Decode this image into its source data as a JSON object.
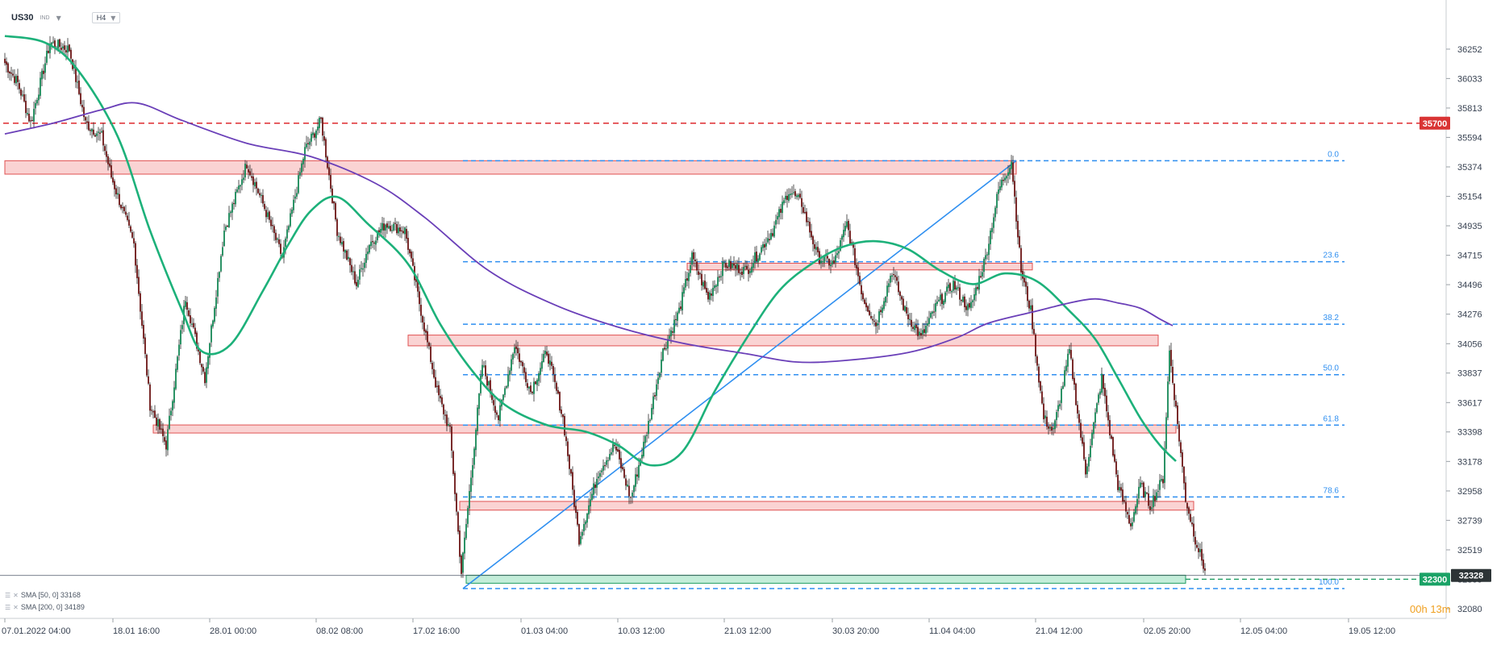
{
  "header": {
    "symbol": "US30",
    "market": "IND",
    "timeframe": "H4"
  },
  "indicators": [
    {
      "label": "SMA [50, 0] 33168",
      "color": "#1db17a"
    },
    {
      "label": "SMA [200, 0] 34189",
      "color": "#6a3fb8"
    }
  ],
  "countdown": {
    "hours": "00h",
    "minutes": "13m"
  },
  "chart_data": {
    "type": "candlestick",
    "y_ticks": [
      36252,
      36033,
      35813,
      35594,
      35374,
      35154,
      34935,
      34715,
      34496,
      34276,
      34056,
      33837,
      33617,
      33398,
      33178,
      32958,
      32739,
      32519,
      32300,
      32080
    ],
    "ylim": [
      32080,
      36450
    ],
    "x_ticks": [
      "07.01.2022  04:00",
      "18.01  16:00",
      "28.01  00:00",
      "08.02  08:00",
      "17.02  16:00",
      "01.03  04:00",
      "10.03  12:00",
      "21.03  12:00",
      "30.03  20:00",
      "11.04  04:00",
      "21.04  12:00",
      "02.05  20:00",
      "12.05  04:00",
      "19.05  12:00"
    ],
    "x_tick_index": [
      0,
      67,
      127,
      193,
      253,
      320,
      380,
      446,
      513,
      573,
      639,
      706,
      766,
      833
    ],
    "n_candles": 745,
    "anchors": [
      [
        0,
        36150
      ],
      [
        8,
        36000
      ],
      [
        16,
        35700
      ],
      [
        28,
        36300
      ],
      [
        40,
        36250
      ],
      [
        50,
        35700
      ],
      [
        60,
        35600
      ],
      [
        66,
        35300
      ],
      [
        80,
        34800
      ],
      [
        90,
        33600
      ],
      [
        100,
        33300
      ],
      [
        112,
        34400
      ],
      [
        124,
        33800
      ],
      [
        136,
        34900
      ],
      [
        150,
        35400
      ],
      [
        160,
        35100
      ],
      [
        172,
        34700
      ],
      [
        186,
        35500
      ],
      [
        196,
        35720
      ],
      [
        206,
        34900
      ],
      [
        218,
        34500
      ],
      [
        226,
        34800
      ],
      [
        236,
        34950
      ],
      [
        248,
        34900
      ],
      [
        258,
        34300
      ],
      [
        268,
        33700
      ],
      [
        276,
        33400
      ],
      [
        283,
        32350
      ],
      [
        296,
        33900
      ],
      [
        306,
        33500
      ],
      [
        316,
        34050
      ],
      [
        326,
        33700
      ],
      [
        336,
        34000
      ],
      [
        346,
        33500
      ],
      [
        356,
        32600
      ],
      [
        368,
        33100
      ],
      [
        378,
        33300
      ],
      [
        388,
        32900
      ],
      [
        398,
        33400
      ],
      [
        408,
        34000
      ],
      [
        418,
        34300
      ],
      [
        426,
        34700
      ],
      [
        436,
        34400
      ],
      [
        446,
        34650
      ],
      [
        460,
        34600
      ],
      [
        476,
        34900
      ],
      [
        486,
        35200
      ],
      [
        494,
        35100
      ],
      [
        504,
        34700
      ],
      [
        514,
        34650
      ],
      [
        522,
        34950
      ],
      [
        532,
        34400
      ],
      [
        540,
        34200
      ],
      [
        550,
        34600
      ],
      [
        558,
        34300
      ],
      [
        568,
        34100
      ],
      [
        578,
        34350
      ],
      [
        588,
        34500
      ],
      [
        598,
        34300
      ],
      [
        608,
        34700
      ],
      [
        616,
        35200
      ],
      [
        624,
        35420
      ],
      [
        630,
        34600
      ],
      [
        636,
        34300
      ],
      [
        644,
        33500
      ],
      [
        650,
        33400
      ],
      [
        660,
        34000
      ],
      [
        670,
        33100
      ],
      [
        680,
        33800
      ],
      [
        690,
        33000
      ],
      [
        698,
        32700
      ],
      [
        704,
        33000
      ],
      [
        710,
        32850
      ],
      [
        718,
        33050
      ],
      [
        722,
        34000
      ],
      [
        728,
        33350
      ],
      [
        732,
        32900
      ],
      [
        738,
        32600
      ],
      [
        745,
        32328
      ]
    ],
    "resistance_line": {
      "value": 35700,
      "label": "35700",
      "color": "#e03a3e"
    },
    "support_label": {
      "value": 32300,
      "label": "32300"
    },
    "current_price": {
      "value": 32328,
      "label": "32328"
    },
    "fibonacci": {
      "start": {
        "index": 284,
        "value": 32230
      },
      "end": {
        "index": 627,
        "value": 35420
      },
      "levels": [
        {
          "ratio": "0.0",
          "value": 35420
        },
        {
          "ratio": "23.6",
          "value": 34667
        },
        {
          "ratio": "38.2",
          "value": 34201
        },
        {
          "ratio": "50.0",
          "value": 33825
        },
        {
          "ratio": "61.8",
          "value": 33449
        },
        {
          "ratio": "78.6",
          "value": 32913
        },
        {
          "ratio": "100.0",
          "value": 32230
        }
      ]
    },
    "zones": [
      {
        "from": 0,
        "to": 627,
        "low": 35320,
        "high": 35420,
        "kind": "resistance"
      },
      {
        "from": 423,
        "to": 637,
        "low": 34606,
        "high": 34656,
        "kind": "resistance"
      },
      {
        "from": 250,
        "to": 715,
        "low": 34040,
        "high": 34120,
        "kind": "resistance"
      },
      {
        "from": 92,
        "to": 726,
        "low": 33390,
        "high": 33450,
        "kind": "resistance"
      },
      {
        "from": 282,
        "to": 737,
        "low": 32815,
        "high": 32880,
        "kind": "resistance"
      },
      {
        "from": 286,
        "to": 732,
        "low": 32270,
        "high": 32330,
        "kind": "support"
      }
    ],
    "series": [
      {
        "name": "SMA [50, 0]",
        "color": "#1db17a",
        "points": [
          [
            0,
            36350
          ],
          [
            25,
            36300
          ],
          [
            45,
            36100
          ],
          [
            70,
            35600
          ],
          [
            90,
            34900
          ],
          [
            110,
            34300
          ],
          [
            122,
            34000
          ],
          [
            140,
            34050
          ],
          [
            160,
            34450
          ],
          [
            176,
            34800
          ],
          [
            190,
            35050
          ],
          [
            206,
            35150
          ],
          [
            225,
            34950
          ],
          [
            250,
            34650
          ],
          [
            270,
            34200
          ],
          [
            290,
            33850
          ],
          [
            310,
            33600
          ],
          [
            336,
            33450
          ],
          [
            360,
            33400
          ],
          [
            380,
            33300
          ],
          [
            400,
            33150
          ],
          [
            420,
            33250
          ],
          [
            440,
            33700
          ],
          [
            460,
            34100
          ],
          [
            480,
            34450
          ],
          [
            500,
            34650
          ],
          [
            520,
            34780
          ],
          [
            540,
            34820
          ],
          [
            560,
            34760
          ],
          [
            580,
            34600
          ],
          [
            600,
            34500
          ],
          [
            620,
            34580
          ],
          [
            640,
            34520
          ],
          [
            660,
            34300
          ],
          [
            676,
            34090
          ],
          [
            690,
            33800
          ],
          [
            704,
            33500
          ],
          [
            716,
            33300
          ],
          [
            726,
            33180
          ]
        ]
      },
      {
        "name": "SMA [200, 0]",
        "color": "#6a3fb8",
        "points": [
          [
            0,
            35620
          ],
          [
            30,
            35700
          ],
          [
            60,
            35800
          ],
          [
            82,
            35850
          ],
          [
            110,
            35720
          ],
          [
            150,
            35550
          ],
          [
            190,
            35450
          ],
          [
            230,
            35250
          ],
          [
            260,
            35000
          ],
          [
            300,
            34600
          ],
          [
            340,
            34350
          ],
          [
            380,
            34180
          ],
          [
            420,
            34060
          ],
          [
            460,
            33980
          ],
          [
            490,
            33920
          ],
          [
            520,
            33930
          ],
          [
            560,
            33990
          ],
          [
            590,
            34100
          ],
          [
            610,
            34210
          ],
          [
            640,
            34300
          ],
          [
            660,
            34360
          ],
          [
            676,
            34390
          ],
          [
            690,
            34360
          ],
          [
            704,
            34320
          ],
          [
            716,
            34240
          ],
          [
            724,
            34190
          ]
        ]
      }
    ]
  }
}
